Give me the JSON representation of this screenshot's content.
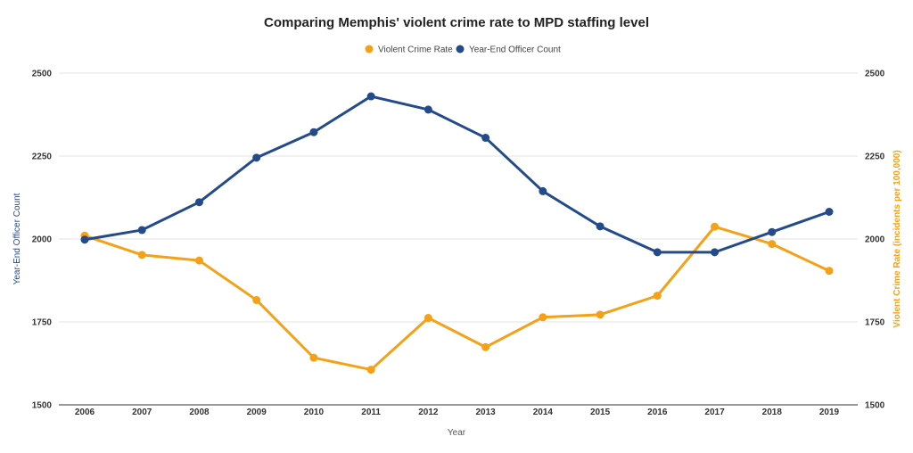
{
  "chart_data": {
    "type": "line",
    "title": "Comparing Memphis' violent crime rate to MPD staffing level",
    "xlabel": "Year",
    "ylabel_left": "Year-End Officer Count",
    "ylabel_right": "Violent Crime Rate (incidents per 100,000)",
    "categories": [
      "2006",
      "2007",
      "2008",
      "2009",
      "2010",
      "2011",
      "2012",
      "2013",
      "2014",
      "2015",
      "2016",
      "2017",
      "2018",
      "2019"
    ],
    "ylim": [
      1500,
      2500
    ],
    "yticks": [
      "1500",
      "1750",
      "2000",
      "2250",
      "2500"
    ],
    "grid": true,
    "legend_position": "top-center",
    "series": [
      {
        "name": "Violent Crime Rate",
        "color": "#f5a118",
        "axis": "right",
        "values": [
          2010,
          1952,
          1935,
          1816,
          1642,
          1606,
          1762,
          1674,
          1764,
          1772,
          1829,
          2037,
          1985,
          1904
        ]
      },
      {
        "name": "Year-End Officer Count",
        "color": "#234a8a",
        "axis": "left",
        "values": [
          1998,
          2027,
          2111,
          2245,
          2322,
          2430,
          2390,
          2305,
          2144,
          2038,
          1960,
          1960,
          2021,
          2082
        ]
      }
    ]
  }
}
